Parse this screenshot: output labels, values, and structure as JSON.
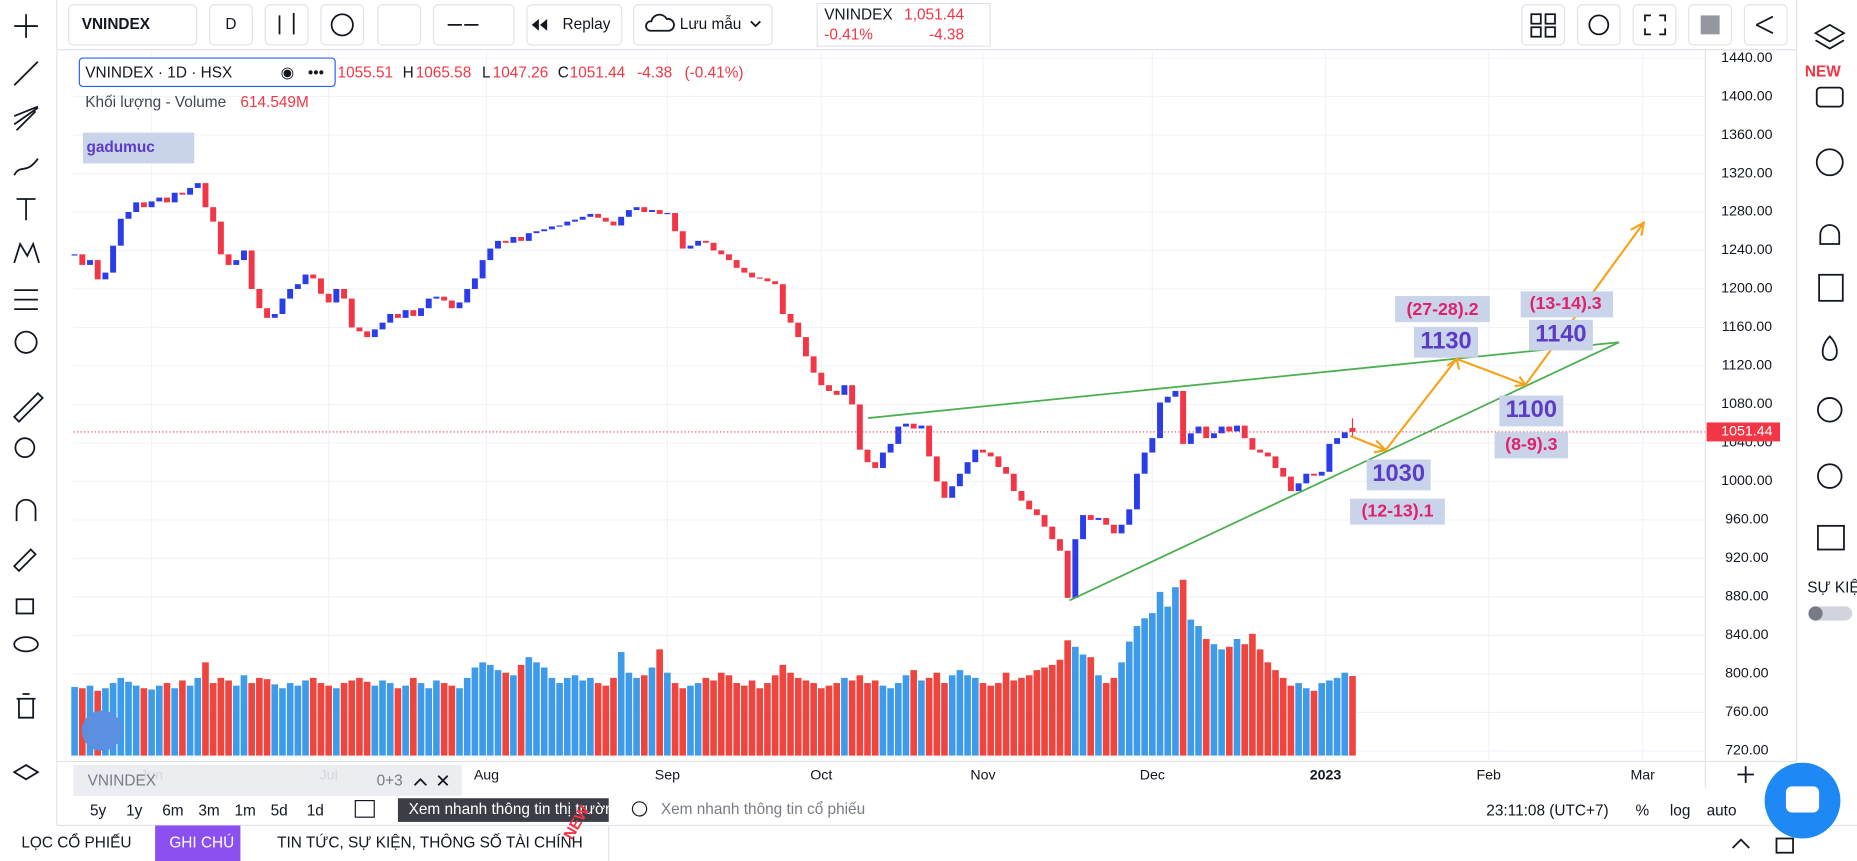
{
  "toolbar": {
    "symbol": "VNINDEX",
    "interval": "D",
    "replay": "Replay",
    "save": "Lưu mẫu"
  },
  "quote": {
    "symbol": "VNINDEX",
    "price": {
      "value": 1051.44,
      "label": "1,051.44"
    },
    "change_pct": {
      "value": -0.41,
      "label": "-0.41%"
    },
    "change": -4.38
  },
  "legend": {
    "title": "VNINDEX · 1D · HSX",
    "open": 1055.51,
    "high_key": "H",
    "high": 1065.58,
    "low_key": "L",
    "low": 1047.26,
    "close_key": "C",
    "close": 1051.44,
    "change": -4.38,
    "change_pct": {
      "value": -0.41,
      "label": "(-0.41%)"
    },
    "volume_name": "Khối lượng - Volume",
    "volume": {
      "value": 614.549,
      "label": "614.549M"
    }
  },
  "watermark": "gadumuc",
  "chart_data": {
    "type": "candlestick",
    "xlim": [
      0,
      212
    ],
    "xticks": [
      {
        "value": 10,
        "label": "Jun"
      },
      {
        "value": 33,
        "label": "Jul"
      },
      {
        "value": 53.5,
        "label": "Aug"
      },
      {
        "value": 77,
        "label": "Sep"
      },
      {
        "value": 97,
        "label": "Oct"
      },
      {
        "value": 118,
        "label": "Nov"
      },
      {
        "value": 140,
        "label": "Dec"
      },
      {
        "value": 162.5,
        "label": "2023"
      },
      {
        "value": 183.7,
        "label": "Feb"
      },
      {
        "value": 203.7,
        "label": "Mar"
      }
    ],
    "ylim": [
      720,
      1440
    ],
    "yticks": [
      {
        "value": 1440,
        "label": "1440.00"
      },
      {
        "value": 1400,
        "label": "1400.00"
      },
      {
        "value": 1360,
        "label": "1360.00"
      },
      {
        "value": 1320,
        "label": "1320.00"
      },
      {
        "value": 1280,
        "label": "1280.00"
      },
      {
        "value": 1240,
        "label": "1240.00"
      },
      {
        "value": 1200,
        "label": "1200.00"
      },
      {
        "value": 1160,
        "label": "1160.00"
      },
      {
        "value": 1120,
        "label": "1120.00"
      },
      {
        "value": 1080,
        "label": "1080.00"
      },
      {
        "value": 1040,
        "label": "1040.00"
      },
      {
        "value": 1000,
        "label": "1000.00"
      },
      {
        "value": 960,
        "label": "960.00"
      },
      {
        "value": 920,
        "label": "920.00"
      },
      {
        "value": 880,
        "label": "880.00"
      },
      {
        "value": 840,
        "label": "840.00"
      },
      {
        "value": 800,
        "label": "800.00"
      },
      {
        "value": 760,
        "label": "760.00"
      },
      {
        "value": 720,
        "label": "720.00"
      }
    ],
    "grid": true,
    "up_color": "#2a3de8",
    "down_color": "#f23645",
    "close": [
      1236,
      1225,
      1230,
      1210,
      1217,
      1245,
      1273,
      1280,
      1290,
      1285,
      1291,
      1295,
      1290,
      1300,
      1298,
      1305,
      1310,
      1285,
      1270,
      1236,
      1225,
      1230,
      1240,
      1200,
      1180,
      1170,
      1174,
      1190,
      1200,
      1205,
      1215,
      1211,
      1195,
      1186,
      1200,
      1190,
      1160,
      1156,
      1150,
      1158,
      1165,
      1174,
      1170,
      1178,
      1172,
      1180,
      1190,
      1192,
      1188,
      1180,
      1186,
      1200,
      1211,
      1230,
      1242,
      1250,
      1248,
      1254,
      1250,
      1258,
      1260,
      1262,
      1265,
      1266,
      1270,
      1272,
      1275,
      1278,
      1274,
      1270,
      1266,
      1275,
      1282,
      1285,
      1280,
      1282,
      1278,
      1279,
      1260,
      1242,
      1245,
      1250,
      1248,
      1240,
      1236,
      1230,
      1222,
      1217,
      1212,
      1211,
      1208,
      1205,
      1174,
      1165,
      1150,
      1130,
      1113,
      1100,
      1094,
      1090,
      1100,
      1080,
      1033,
      1020,
      1014,
      1030,
      1039,
      1057,
      1060,
      1055,
      1058,
      1026,
      1000,
      983,
      995,
      1008,
      1020,
      1033,
      1030,
      1026,
      1015,
      1008,
      990,
      980,
      971,
      965,
      953,
      940,
      928,
      879,
      940,
      965,
      960,
      962,
      955,
      946,
      955,
      971,
      1008,
      1030,
      1045,
      1082,
      1088,
      1094,
      1039,
      1050,
      1057,
      1045,
      1050,
      1057,
      1052,
      1058,
      1045,
      1033,
      1030,
      1026,
      1014,
      1005,
      990,
      998,
      1008,
      1006,
      1010,
      1039,
      1045,
      1051
    ],
    "volume": [
      530,
      520,
      540,
      500,
      520,
      560,
      600,
      570,
      540,
      520,
      510,
      540,
      560,
      520,
      580,
      540,
      600,
      720,
      560,
      600,
      580,
      540,
      620,
      560,
      600,
      590,
      550,
      520,
      560,
      540,
      580,
      600,
      560,
      540,
      520,
      560,
      580,
      600,
      570,
      540,
      580,
      560,
      520,
      540,
      600,
      560,
      520,
      580,
      560,
      540,
      520,
      600,
      680,
      720,
      700,
      660,
      640,
      620,
      700,
      760,
      720,
      680,
      600,
      560,
      600,
      620,
      580,
      600,
      560,
      540,
      600,
      800,
      640,
      600,
      620,
      680,
      820,
      640,
      560,
      520,
      540,
      560,
      600,
      580,
      640,
      620,
      560,
      540,
      580,
      520,
      560,
      620,
      700,
      640,
      600,
      580,
      560,
      520,
      540,
      560,
      600,
      580,
      620,
      560,
      580,
      540,
      520,
      560,
      620,
      660,
      580,
      600,
      640,
      560,
      620,
      660,
      620,
      600,
      560,
      540,
      560,
      640,
      580,
      600,
      620,
      660,
      680,
      700,
      740,
      890,
      840,
      780,
      760,
      620,
      560,
      600,
      720,
      880,
      1000,
      1060,
      1100,
      1264,
      1150,
      1300,
      1357,
      1050,
      1000,
      900,
      860,
      820,
      840,
      900,
      860,
      940,
      820,
      720,
      660,
      600,
      540,
      560,
      520,
      500,
      560,
      580,
      600,
      640
    ],
    "volume_lim": [
      0,
      1600
    ],
    "volume_up_color": "#3d9be9",
    "volume_down_color": "#f0453f",
    "last_price": {
      "value": 1051.44,
      "label": "1051.44"
    },
    "targets": [
      1130,
      1140,
      1100,
      1030
    ],
    "target_notes": [
      "(27-28).2",
      "(13-14).3",
      "(8-9).3",
      "(12-13).1"
    ]
  },
  "ranges": [
    "5y",
    "1y",
    "6m",
    "3m",
    "1m",
    "5d",
    "1d"
  ],
  "mini_panel": {
    "symbol": "VNINDEX",
    "count": "0+3"
  },
  "search": {
    "market": "Xem nhanh thông tin thị trường",
    "stock": "Xem nhanh thông tin cổ phiếu"
  },
  "clock": "23:11:08 (UTC+7)",
  "scale_options": [
    "%",
    "log",
    "auto"
  ],
  "sidebar": {
    "new": "NEW",
    "events": "SỰ KIỆN"
  },
  "tabs": [
    "LỌC CỔ PHIẾU",
    "GHI CHÚ",
    "TIN TỨC, SỰ KIỆN, THÔNG SỐ TÀI CHÍNH"
  ],
  "tab_badge": "NEW"
}
